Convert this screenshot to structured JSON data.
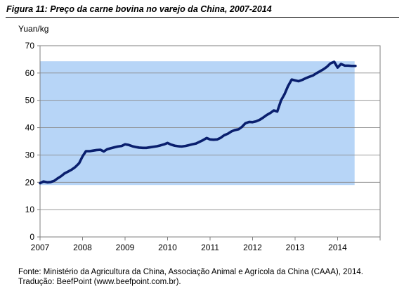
{
  "figure": {
    "title": "Figura 11: Preço da carne bovina no varejo da China, 2007-2014",
    "source_line1": "Fonte: Ministério da Agricultura da China, Associação Animal e Agrícola da China (CAAA), 2014.",
    "source_line2": "Tradução: BeefPoint (www.beefpoint.com.br)."
  },
  "colors": {
    "line": "#0a1f6e",
    "band": "#b7d5f7",
    "grid": "#8a8a8a",
    "axis": "#7f7f7f"
  },
  "chart_data": {
    "type": "line",
    "title": "",
    "xlabel": "",
    "ylabel": "Yuan/kg",
    "xlim": [
      2007,
      2015
    ],
    "ylim": [
      0,
      70
    ],
    "x_ticks": [
      "2007",
      "2008",
      "2009",
      "2010",
      "2011",
      "2012",
      "2013",
      "2014"
    ],
    "y_ticks": [
      "0",
      "10",
      "20",
      "30",
      "40",
      "50",
      "60",
      "70"
    ],
    "grid": true,
    "legend": "none",
    "shaded_band": {
      "x": [
        2007,
        2014.4
      ],
      "y": [
        19,
        64.3
      ]
    },
    "series": [
      {
        "name": "",
        "x": [
          2007.0,
          2007.08,
          2007.17,
          2007.25,
          2007.33,
          2007.42,
          2007.5,
          2007.58,
          2007.67,
          2007.75,
          2007.83,
          2007.92,
          2008.0,
          2008.08,
          2008.17,
          2008.25,
          2008.33,
          2008.42,
          2008.5,
          2008.58,
          2008.67,
          2008.75,
          2008.83,
          2008.92,
          2009.0,
          2009.08,
          2009.17,
          2009.25,
          2009.33,
          2009.42,
          2009.5,
          2009.58,
          2009.67,
          2009.75,
          2009.83,
          2009.92,
          2010.0,
          2010.08,
          2010.17,
          2010.25,
          2010.33,
          2010.42,
          2010.5,
          2010.58,
          2010.67,
          2010.75,
          2010.83,
          2010.92,
          2011.0,
          2011.08,
          2011.17,
          2011.25,
          2011.33,
          2011.42,
          2011.5,
          2011.58,
          2011.67,
          2011.75,
          2011.83,
          2011.92,
          2012.0,
          2012.08,
          2012.17,
          2012.25,
          2012.33,
          2012.42,
          2012.5,
          2012.58,
          2012.67,
          2012.75,
          2012.83,
          2012.92,
          2013.0,
          2013.08,
          2013.17,
          2013.25,
          2013.33,
          2013.42,
          2013.5,
          2013.58,
          2013.67,
          2013.75,
          2013.83,
          2013.92,
          2014.0,
          2014.08,
          2014.17,
          2014.25,
          2014.33,
          2014.42
        ],
        "values": [
          19.7,
          20.3,
          20.0,
          20.1,
          20.5,
          21.5,
          22.3,
          23.3,
          24.0,
          24.7,
          25.6,
          27.0,
          29.5,
          31.4,
          31.4,
          31.6,
          31.8,
          31.9,
          31.3,
          32.1,
          32.5,
          32.8,
          33.1,
          33.3,
          33.9,
          33.7,
          33.2,
          32.9,
          32.7,
          32.6,
          32.6,
          32.8,
          33.0,
          33.2,
          33.5,
          33.9,
          34.4,
          33.8,
          33.4,
          33.2,
          33.1,
          33.3,
          33.6,
          33.9,
          34.2,
          34.8,
          35.4,
          36.2,
          35.7,
          35.6,
          35.7,
          36.3,
          37.2,
          37.8,
          38.6,
          39.1,
          39.4,
          40.3,
          41.6,
          42.1,
          42.0,
          42.3,
          42.9,
          43.7,
          44.6,
          45.4,
          46.3,
          45.9,
          50.0,
          52.2,
          55.1,
          57.6,
          57.3,
          57.0,
          57.5,
          58.1,
          58.6,
          59.1,
          59.9,
          60.6,
          61.4,
          62.3,
          63.5,
          64.1,
          62.0,
          63.3,
          62.7,
          62.7,
          62.6,
          62.6
        ]
      }
    ]
  }
}
